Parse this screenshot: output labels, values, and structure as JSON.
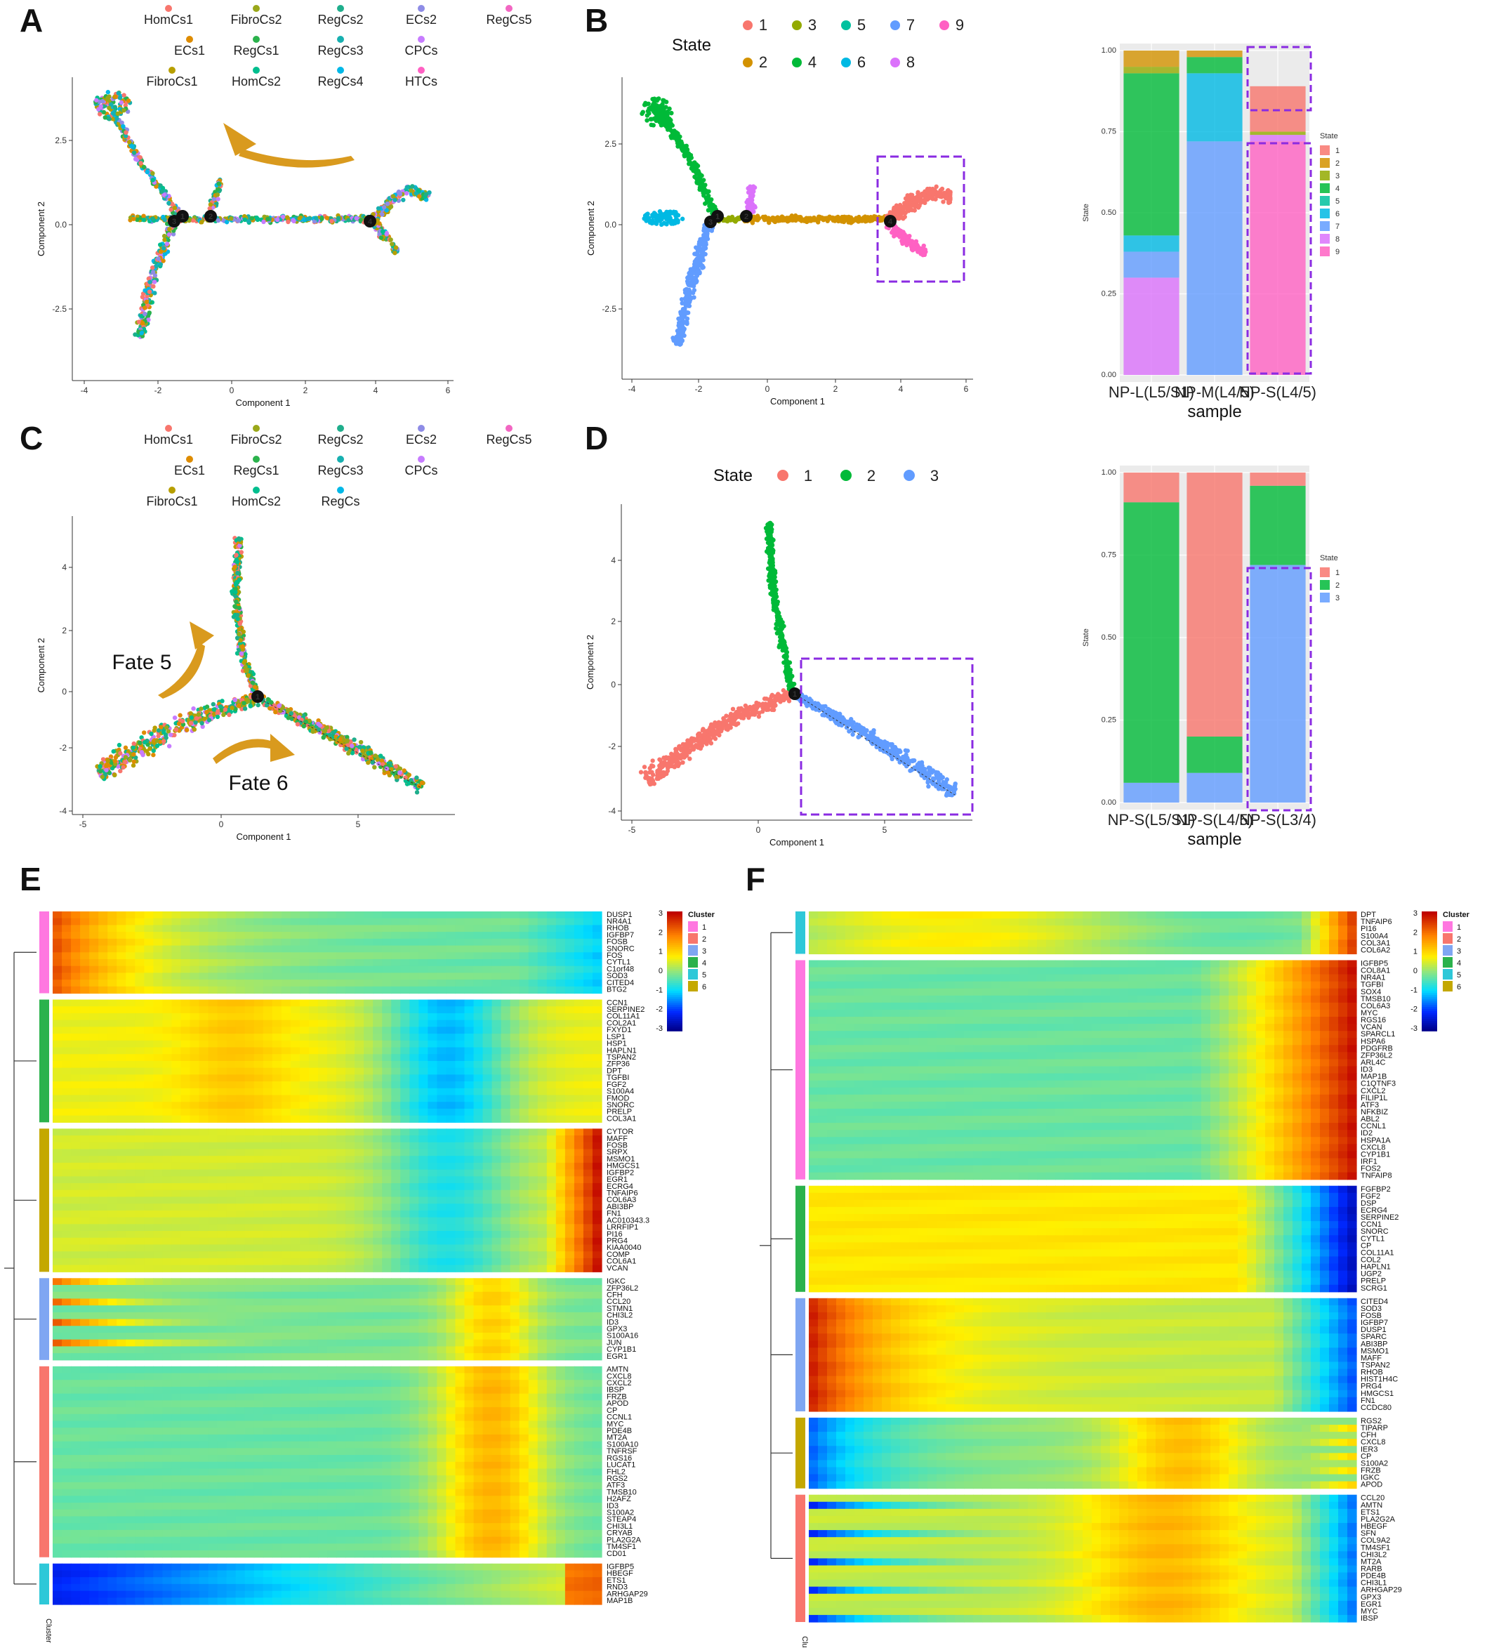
{
  "panels": {
    "A": "A",
    "B": "B",
    "C": "C",
    "D": "D",
    "E": "E",
    "F": "F"
  },
  "colors": {
    "HomCs1": "#F8766D",
    "FibroCs2": "#9AA81A",
    "RegCs2": "#1FAE8C",
    "ECs2": "#8E8CE6",
    "RegCs5": "#F266C2",
    "ECs1": "#DE8C00",
    "RegCs1": "#2BB24C",
    "RegCs3": "#17B0B0",
    "CPCs": "#C77CFF",
    "FibroCs1": "#B79F00",
    "HomCs2": "#00BE8E",
    "RegCs4": "#00B8E7",
    "HTCs": "#FF61C3",
    "s1": "#F8766D",
    "s2": "#D39200",
    "s3": "#93AA00",
    "s4": "#00BA38",
    "s5": "#00C19F",
    "s6": "#00B9E3",
    "s7": "#619CFF",
    "s8": "#DB72FB",
    "s9": "#FF61C3",
    "d1": "#F8766D",
    "d2": "#00BA38",
    "d3": "#619CFF",
    "arrow": "#D99A1E",
    "dash": "#8A2BE2"
  },
  "A": {
    "legend": [
      [
        "HomCs1",
        "FibroCs2",
        "RegCs2",
        "ECs2",
        "RegCs5"
      ],
      [
        "ECs1",
        "RegCs1",
        "RegCs3",
        "CPCs"
      ],
      [
        "FibroCs1",
        "HomCs2",
        "RegCs4",
        "HTCs"
      ]
    ],
    "xlabel": "Component 1",
    "ylabel": "Component 2",
    "xticks": [
      "-4",
      "-2",
      "0",
      "2",
      "4",
      "6"
    ],
    "yticks": [
      "2.5",
      "0.0",
      "-2.5"
    ],
    "nodes": [
      "1",
      "2",
      "3",
      "4"
    ]
  },
  "B": {
    "legend_title": "State",
    "legend": [
      [
        "1",
        "3",
        "5",
        "7",
        "9"
      ],
      [
        "2",
        "4",
        "6",
        "8"
      ]
    ],
    "xlabel": "Component 1",
    "ylabel": "Component 2",
    "xticks": [
      "-4",
      "-2",
      "0",
      "2",
      "4",
      "6"
    ],
    "yticks": [
      "2.5",
      "0.0",
      "-2.5"
    ],
    "nodes": [
      "1",
      "2",
      "3",
      "4"
    ]
  },
  "C": {
    "legend": [
      [
        "HomCs1",
        "FibroCs2",
        "RegCs2",
        "ECs2",
        "RegCs5"
      ],
      [
        "ECs1",
        "RegCs1",
        "RegCs3",
        "CPCs"
      ],
      [
        "FibroCs1",
        "HomCs2",
        "RegCs"
      ]
    ],
    "xlabel": "Component 1",
    "ylabel": "Component 2",
    "xticks": [
      "-5",
      "0",
      "5"
    ],
    "yticks": [
      "4",
      "2",
      "0",
      "-2",
      "-4"
    ],
    "fate5": "Fate 5",
    "fate6": "Fate 6",
    "nodes": [
      "1"
    ]
  },
  "D": {
    "legend_title": "State",
    "legend": [
      "1",
      "2",
      "3"
    ],
    "xlabel": "Component 1",
    "ylabel": "Component 2",
    "xticks": [
      "-5",
      "0",
      "5"
    ],
    "yticks": [
      "4",
      "2",
      "0",
      "-2",
      "-4"
    ],
    "nodes": [
      "1"
    ]
  },
  "chart_data": [
    {
      "type": "bar",
      "stacked": true,
      "panel": "B",
      "categories": [
        "NP-L(L5/S1)",
        "NP-M(L4/5)",
        "NP-S(L4/5)"
      ],
      "xlabel": "sample",
      "ylabel": "State",
      "ylim": [
        0,
        1
      ],
      "yticks": [
        "0.00",
        "0.25",
        "0.50",
        "0.75",
        "1.00"
      ],
      "legend_title": "State",
      "legend_placement": "right",
      "series": [
        {
          "name": "8",
          "values": [
            0.3,
            0,
            0.02
          ]
        },
        {
          "name": "7",
          "values": [
            0.08,
            0.72,
            0
          ]
        },
        {
          "name": "6",
          "values": [
            0.05,
            0.21,
            0
          ]
        },
        {
          "name": "4",
          "values": [
            0.5,
            0.05,
            0
          ]
        },
        {
          "name": "3",
          "values": [
            0.02,
            0,
            0.01
          ]
        },
        {
          "name": "2",
          "values": [
            0.05,
            0.02,
            0
          ]
        },
        {
          "name": "1",
          "values": [
            0,
            0,
            0.14
          ]
        },
        {
          "name": "9",
          "values": [
            0,
            0,
            0.72
          ]
        },
        {
          "name": "5",
          "values": [
            0,
            0,
            0.01
          ]
        }
      ],
      "stack_order": [
        [
          "8",
          "7",
          "6",
          "4",
          "3",
          "2"
        ],
        [
          "7",
          "6",
          "4",
          "3",
          "2"
        ],
        [
          "9",
          "8",
          "4",
          "3",
          "2",
          "1"
        ]
      ],
      "legend": [
        "1",
        "2",
        "3",
        "4",
        "5",
        "6",
        "7",
        "8",
        "9"
      ]
    },
    {
      "type": "bar",
      "stacked": true,
      "panel": "D",
      "categories": [
        "NP-S(L5/S1)",
        "NP-S(L4/5)",
        "NP-S(L3/4)"
      ],
      "xlabel": "sample",
      "ylabel": "State",
      "ylim": [
        0,
        1
      ],
      "yticks": [
        "0.00",
        "0.25",
        "0.50",
        "0.75",
        "1.00"
      ],
      "legend_title": "State",
      "legend_placement": "right",
      "series": [
        {
          "name": "3",
          "values": [
            0.06,
            0.09,
            0.72
          ]
        },
        {
          "name": "2",
          "values": [
            0.85,
            0.11,
            0.24
          ]
        },
        {
          "name": "1",
          "values": [
            0.09,
            0.8,
            0.04
          ]
        }
      ],
      "legend": [
        "1",
        "2",
        "3"
      ]
    },
    {
      "type": "heatmap",
      "panel": "E",
      "legend_title": "Cluster",
      "legend": [
        "1",
        "2",
        "3",
        "4",
        "5",
        "6"
      ],
      "colorbar": [
        "3",
        "2",
        "1",
        "0",
        "-1",
        "-2",
        "-3"
      ],
      "cluster_axis_label": "Cluster",
      "blocks": [
        {
          "cluster": "1",
          "genes": [
            "DUSP1",
            "NR4A1",
            "RHOB",
            "IGFBP7",
            "FOSB",
            "SNORC",
            "FOS",
            "CYTL1",
            "C1orf48",
            "SOD3",
            "CITED4",
            "BTG2"
          ]
        },
        {
          "cluster": "4",
          "genes": [
            "CCN1",
            "SERPINE2",
            "COL11A1",
            "COL2A1",
            "FXYD1",
            "LSP1",
            "HSP1",
            "HAPLN1",
            "TSPAN2",
            "ZFP36",
            "DPT",
            "TGFBI",
            "FGF2",
            "S100A4",
            "FMOD",
            "SNORC",
            "PRELP",
            "COL3A1"
          ]
        },
        {
          "cluster": "6",
          "genes": [
            "CYTOR",
            "MAFF",
            "FOSB",
            "SRPX",
            "MSMO1",
            "HMGCS1",
            "IGFBP2",
            "EGR1",
            "ECRG4",
            "TNFAIP6",
            "COL6A3",
            "ABI3BP",
            "FN1",
            "AC010343.3",
            "LRRFIP1",
            "PI16",
            "PRG4",
            "KIAA0040",
            "COMP",
            "COL6A1",
            "VCAN"
          ]
        },
        {
          "cluster": "3",
          "genes": [
            "IGKC",
            "ZFP36L2",
            "CFH",
            "CCL20",
            "STMN1",
            "CHI3L2",
            "ID3",
            "GPX3",
            "S100A16",
            "JUN",
            "CYP1B1",
            "EGR1"
          ]
        },
        {
          "cluster": "2",
          "genes": [
            "AMTN",
            "CXCL8",
            "CXCL2",
            "IBSP",
            "FRZB",
            "APOD",
            "CP",
            "CCNL1",
            "MYC",
            "PDE4B",
            "MT2A",
            "S100A10",
            "TNFRSF",
            "RGS16",
            "LUCAT1",
            "FHL2",
            "RGS2",
            "ATF3",
            "TMSB10",
            "H2AFZ",
            "ID3",
            "S100A2",
            "STEAP4",
            "CHI3L1",
            "CRYAB",
            "PLA2G2A",
            "TM4SF1",
            "CD01"
          ]
        },
        {
          "cluster": "5",
          "genes": [
            "IGFBP5",
            "HBEGF",
            "ETS1",
            "RND3",
            "ARHGAP29",
            "MAP1B"
          ]
        }
      ]
    },
    {
      "type": "heatmap",
      "panel": "F",
      "legend_title": "Cluster",
      "legend": [
        "1",
        "2",
        "3",
        "4",
        "5",
        "6"
      ],
      "colorbar": [
        "3",
        "2",
        "1",
        "0",
        "-1",
        "-2",
        "-3"
      ],
      "cluster_axis_label": "Cluster",
      "blocks": [
        {
          "cluster": "5",
          "genes": [
            "DPT",
            "TNFAIP6",
            "PI16",
            "S100A4",
            "COL3A1",
            "COL6A2"
          ]
        },
        {
          "cluster": "1",
          "genes": [
            "IGFBP5",
            "COL8A1",
            "NR4A1",
            "TGFBI",
            "SOX4",
            "TMSB10",
            "COL6A3",
            "MYC",
            "RGS16",
            "VCAN",
            "SPARCL1",
            "HSPA6",
            "PDGFRB",
            "ZFP36L2",
            "ARL4C",
            "ID3",
            "MAP1B",
            "C1QTNF3",
            "CXCL2",
            "FILIP1L",
            "ATF3",
            "NFKBIZ",
            "ABL2",
            "CCNL1",
            "ID2",
            "HSPA1A",
            "CXCL8",
            "CYP1B1",
            "IRF1",
            "FOS2",
            "TNFAIP8"
          ]
        },
        {
          "cluster": "4",
          "genes": [
            "FGFBP2",
            "FGF2",
            "DSP",
            "ECRG4",
            "SERPINE2",
            "CCN1",
            "SNORC",
            "CYTL1",
            "CP",
            "COL11A1",
            "COL2",
            "HAPLN1",
            "UGP2",
            "PRELP",
            "SCRG1"
          ]
        },
        {
          "cluster": "3",
          "genes": [
            "CITED4",
            "SOD3",
            "FOSB",
            "IGFBP7",
            "DUSP1",
            "SPARC",
            "ABI3BP",
            "MSMO1",
            "MAFF",
            "TSPAN2",
            "RHOB",
            "HIST1H4C",
            "PRG4",
            "HMGCS1",
            "FN1",
            "CCDC80"
          ]
        },
        {
          "cluster": "6",
          "genes": [
            "RGS2",
            "TIPARP",
            "CFH",
            "CXCL8",
            "IER3",
            "CP",
            "S100A2",
            "FRZB",
            "IGKC",
            "APOD"
          ]
        },
        {
          "cluster": "2",
          "genes": [
            "CCL20",
            "AMTN",
            "ETS1",
            "PLA2G2A",
            "HBEGF",
            "SFN",
            "COL9A2",
            "TM4SF1",
            "CHI3L2",
            "MT2A",
            "RARB",
            "PDE4B",
            "CHI3L1",
            "ARHGAP29",
            "GPX3",
            "EGR1",
            "MYC",
            "IBSP"
          ]
        }
      ]
    }
  ]
}
